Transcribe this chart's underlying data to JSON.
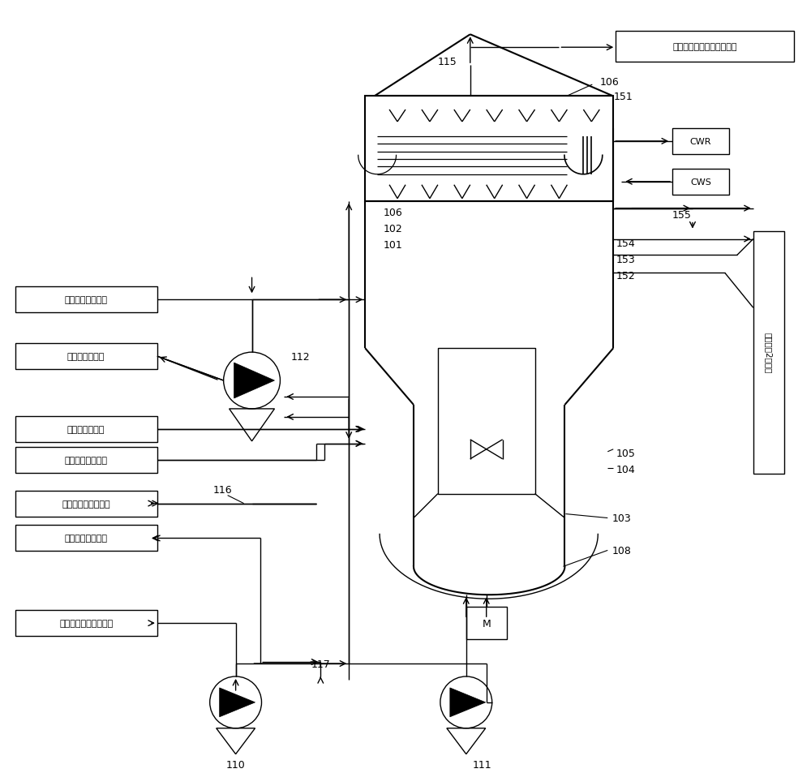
{
  "bg_color": "#ffffff",
  "line_color": "#000000",
  "text_color": "#000000",
  "fig_width": 10.0,
  "fig_height": 9.54,
  "labels": {
    "top_right": "未凝汽至装置真空冷凝系统",
    "left1": "装置内返回冷凝液",
    "left2": "酬胺油至装置内",
    "left3": "气氨自装置外来",
    "left4": "重排液自装置外来",
    "left5": "硫铵母液自装置内来",
    "left6": "硫铵浆液至装置内",
    "left7": "含铵工艺水自装置外来",
    "right_vertical": "结晶浆浩2装置内",
    "CWR": "CWR",
    "CWS": "CWS",
    "M": "M"
  }
}
